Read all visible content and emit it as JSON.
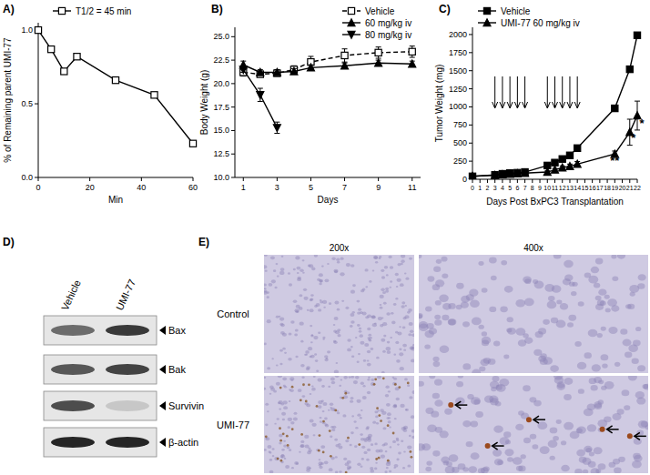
{
  "chart_data": [
    {
      "type": "line",
      "title": "A)",
      "x_label": "Min",
      "y_label": "% of Remaining parent UMI-77",
      "x": [
        0,
        5,
        10,
        15,
        30,
        45,
        60
      ],
      "series": [
        {
          "name": "T1/2 = 45 min",
          "color": "#000000",
          "marker": "open-square",
          "line_style": "solid",
          "values": [
            1.0,
            0.87,
            0.72,
            0.82,
            0.66,
            0.56,
            0.23
          ]
        }
      ],
      "xlim": [
        0,
        60
      ],
      "xticks": [
        0,
        20,
        40,
        60
      ],
      "ylim": [
        0,
        1.05
      ],
      "yticks": [
        {
          "value": 0,
          "label": "0.0"
        },
        {
          "value": 0.5,
          "label": "0.5"
        },
        {
          "value": 1,
          "label": "1.0"
        }
      ],
      "legend": "upper-left"
    },
    {
      "type": "line",
      "title": "B)",
      "x_label": "Days",
      "y_label": "Body Weight (g)",
      "x": [
        1,
        2,
        3,
        4,
        5,
        7,
        9,
        11
      ],
      "series": [
        {
          "name": "Vehicle",
          "color": "#000000",
          "marker": "open-square",
          "line_style": "dashed",
          "values": [
            21.2,
            21.0,
            21.1,
            21.5,
            22.3,
            23.0,
            23.3,
            23.4
          ],
          "error": [
            0.4,
            0.3,
            0.3,
            0.4,
            0.6,
            0.7,
            0.6,
            0.6
          ]
        },
        {
          "name": "60 mg/kg iv",
          "color": "#000000",
          "marker": "triangle",
          "line_style": "solid",
          "values": [
            22.0,
            21.2,
            21.2,
            21.3,
            21.7,
            21.9,
            22.2,
            22.1
          ],
          "error": [
            0.4,
            0.3,
            0.3,
            0.3,
            0.3,
            0.3,
            0.3,
            0.3
          ]
        },
        {
          "name": "80 mg/kg iv",
          "color": "#000000",
          "marker": "inverted-triangle",
          "line_style": "solid",
          "values": [
            21.5,
            18.8,
            15.3,
            null,
            null,
            null,
            null,
            null
          ],
          "error": [
            0.3,
            0.7,
            0.6,
            null,
            null,
            null,
            null,
            null
          ]
        }
      ],
      "xlim": [
        0.5,
        11.5
      ],
      "xticks": [
        1,
        3,
        5,
        7,
        9,
        11
      ],
      "ylim": [
        10,
        26
      ],
      "yticks": [
        {
          "value": 10,
          "label": "10.0"
        },
        {
          "value": 12.5,
          "label": "12.5"
        },
        {
          "value": 15,
          "label": "15.0"
        },
        {
          "value": 17.5,
          "label": "17.5"
        },
        {
          "value": 20,
          "label": "20.0"
        },
        {
          "value": 22.5,
          "label": "22.5"
        },
        {
          "value": 25,
          "label": "25.0"
        }
      ],
      "legend": "upper-right"
    },
    {
      "type": "line",
      "title": "C)",
      "x_label": "Days Post BxPC3 Transplantation",
      "y_label": "Tumor Weight (mg)",
      "x": [
        0,
        3,
        4,
        5,
        6,
        7,
        10,
        11,
        12,
        13,
        14,
        19,
        21,
        22
      ],
      "series": [
        {
          "name": "Vehicle",
          "color": "#000000",
          "marker": "square",
          "line_style": "solid",
          "values": [
            40,
            60,
            75,
            85,
            90,
            100,
            190,
            230,
            280,
            330,
            430,
            980,
            1520,
            1990
          ],
          "error": [
            5,
            8,
            10,
            10,
            12,
            12,
            20,
            25,
            30,
            35,
            40,
            30,
            40,
            20
          ]
        },
        {
          "name": "UMI-77 60 mg/kg iv",
          "color": "#000000",
          "marker": "triangle",
          "line_style": "solid",
          "values": [
            40,
            55,
            65,
            72,
            78,
            85,
            100,
            130,
            160,
            180,
            210,
            350,
            650,
            880
          ],
          "error": [
            5,
            8,
            8,
            10,
            10,
            10,
            15,
            20,
            25,
            30,
            35,
            40,
            180,
            200
          ]
        }
      ],
      "dose_days": [
        3,
        4,
        5,
        6,
        7,
        10,
        11,
        12,
        13,
        14
      ],
      "annotations": [
        {
          "text": "**",
          "x": 19,
          "y": 200
        },
        {
          "text": "*",
          "x": 21.5,
          "y": 520
        },
        {
          "text": "*",
          "x": 22.6,
          "y": 720
        }
      ],
      "xlim": [
        0,
        22
      ],
      "xticks": [
        0,
        1,
        2,
        3,
        4,
        5,
        6,
        7,
        8,
        9,
        10,
        11,
        12,
        13,
        14,
        15,
        16,
        17,
        18,
        19,
        20,
        21,
        22
      ],
      "ylim": [
        0,
        2100
      ],
      "yticks": [
        0,
        250,
        500,
        750,
        1000,
        1250,
        1500,
        1750,
        2000
      ],
      "legend": "upper-left"
    }
  ],
  "blot": {
    "title": "D)",
    "lanes": [
      "Vehicle",
      "UMI-77"
    ],
    "rows": [
      {
        "label": "Bax",
        "intensity": [
          0.6,
          0.85
        ]
      },
      {
        "label": "Bak",
        "intensity": [
          0.7,
          0.8
        ]
      },
      {
        "label": "Survivin",
        "intensity": [
          0.75,
          0.15
        ]
      },
      {
        "label": "β-actin",
        "intensity": [
          0.95,
          0.95
        ]
      }
    ]
  },
  "ihc": {
    "title": "E)",
    "columns": [
      "200x",
      "400x"
    ],
    "rows": [
      "Control",
      "UMI-77"
    ]
  }
}
